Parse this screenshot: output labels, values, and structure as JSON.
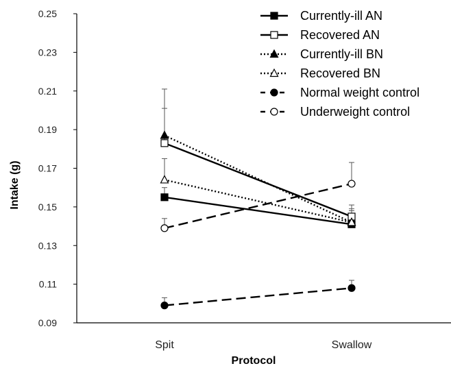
{
  "chart_data": {
    "type": "line",
    "title": "",
    "xlabel": "Protocol",
    "ylabel": "Intake (g)",
    "categories": [
      "Spit",
      "Swallow"
    ],
    "ylim": [
      0.09,
      0.25
    ],
    "yticks": [
      0.09,
      0.11,
      0.13,
      0.15,
      0.17,
      0.19,
      0.21,
      0.23,
      0.25
    ],
    "ytick_labels": [
      "0.09",
      "0.11",
      "0.13",
      "0.15",
      "0.17",
      "0.19",
      "0.21",
      "0.23",
      "0.25"
    ],
    "grid": false,
    "legend_position": "top-right",
    "series": [
      {
        "name": "Currently-ill AN",
        "values": [
          0.155,
          0.141
        ],
        "error": [
          0.005,
          0.004
        ],
        "marker": "square-filled",
        "line_style": "solid",
        "color": "#000000"
      },
      {
        "name": "Recovered AN",
        "values": [
          0.183,
          0.145
        ],
        "error": [
          0.018,
          0.006
        ],
        "marker": "square-open",
        "line_style": "solid",
        "color": "#000000"
      },
      {
        "name": "Currently-ill BN",
        "values": [
          0.187,
          0.142
        ],
        "error": [
          0.024,
          0.007
        ],
        "marker": "triangle-filled",
        "line_style": "dotted",
        "color": "#000000"
      },
      {
        "name": "Recovered BN",
        "values": [
          0.164,
          0.142
        ],
        "error": [
          0.011,
          0.006
        ],
        "marker": "triangle-open",
        "line_style": "dotted",
        "color": "#000000"
      },
      {
        "name": "Normal weight control",
        "values": [
          0.099,
          0.108
        ],
        "error": [
          0.004,
          0.004
        ],
        "marker": "circle-filled",
        "line_style": "dashed",
        "color": "#000000"
      },
      {
        "name": "Underweight control",
        "values": [
          0.139,
          0.162
        ],
        "error": [
          0.005,
          0.011
        ],
        "marker": "circle-open",
        "line_style": "dashed",
        "color": "#000000"
      }
    ]
  }
}
